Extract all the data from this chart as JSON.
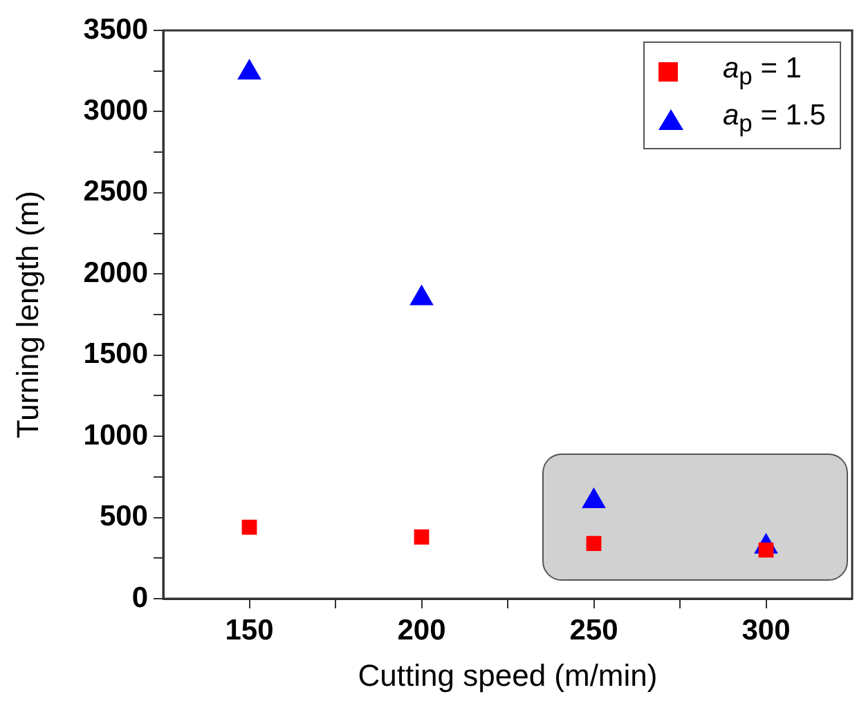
{
  "chart_data": {
    "type": "scatter",
    "xlabel": "Cutting speed (m/min)",
    "ylabel": "Turning length (m)",
    "x": [
      150,
      200,
      250,
      300
    ],
    "series": [
      {
        "name": "a$_{p}$ = 1",
        "color": "#ff0000",
        "marker": "square",
        "values": [
          440,
          380,
          340,
          300
        ]
      },
      {
        "name": "a$_{p}$ = 1.5",
        "color": "#0000ff",
        "marker": "triangle",
        "values": [
          3240,
          1850,
          600,
          320
        ]
      }
    ],
    "xlim": [
      125,
      325
    ],
    "xticks": [
      150,
      {
        "value": 175,
        "label": null
      },
      200,
      {
        "value": 225,
        "label": null
      },
      250,
      {
        "value": 275,
        "label": null
      },
      300
    ],
    "ylim": [
      0,
      3500
    ],
    "yticks": [
      0,
      {
        "value": 250,
        "label": null
      },
      500,
      {
        "value": 750,
        "label": null
      },
      1000,
      {
        "value": 1250,
        "label": null
      },
      1500,
      {
        "value": 1750,
        "label": null
      },
      2000,
      {
        "value": 2250,
        "label": null
      },
      2500,
      {
        "value": 2750,
        "label": null
      },
      3000,
      {
        "value": 3250,
        "label": null
      },
      3500
    ],
    "grid": false,
    "legend": "top right"
  }
}
